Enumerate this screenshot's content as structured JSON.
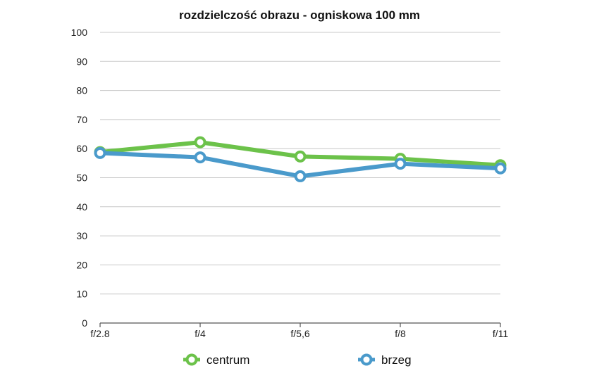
{
  "chart_data": {
    "type": "line",
    "title": "rozdzielczość obrazu - ogniskowa 100 mm",
    "categories": [
      "f/2.8",
      "f/4",
      "f/5,6",
      "f/8",
      "f/11"
    ],
    "ylim": [
      0,
      100
    ],
    "yticks": [
      0,
      10,
      20,
      30,
      40,
      50,
      60,
      70,
      80,
      90,
      100
    ],
    "grid": true,
    "legend_position": "bottom",
    "series": [
      {
        "name": "centrum",
        "color": "#6cc24a",
        "values": [
          58.8,
          62.2,
          57.3,
          56.5,
          54.3
        ]
      },
      {
        "name": "brzeg",
        "color": "#4a9acb",
        "values": [
          58.5,
          57.0,
          50.5,
          54.8,
          53.2
        ]
      }
    ]
  }
}
